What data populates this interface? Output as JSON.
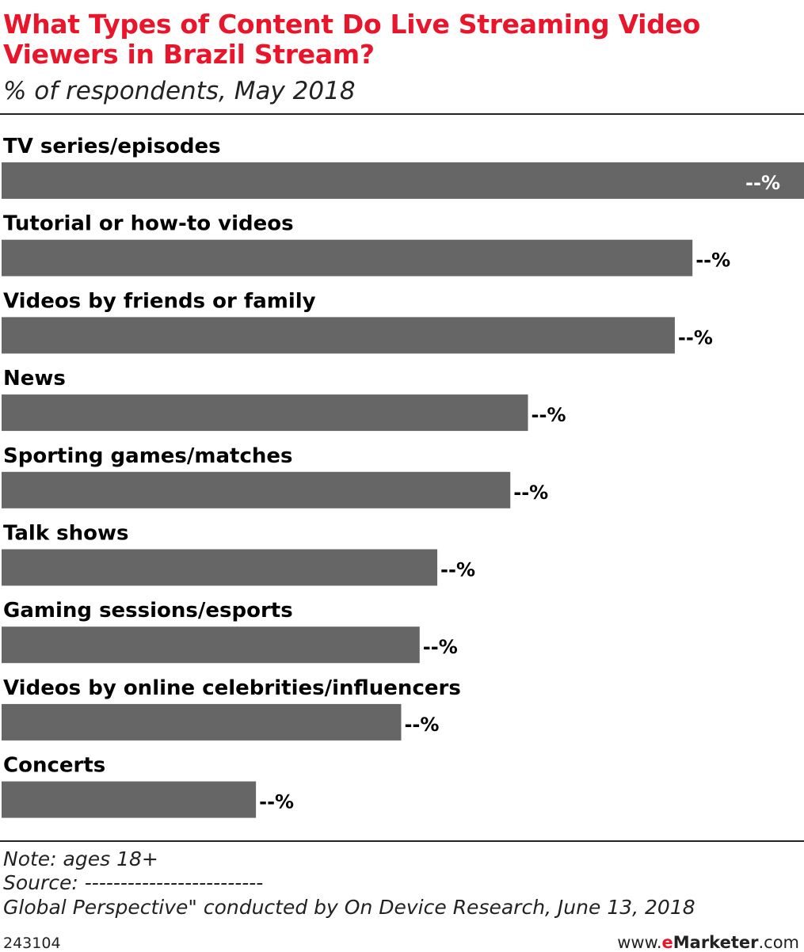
{
  "header": {
    "title": "What Types of Content Do Live Streaming Video Viewers in Brazil Stream?",
    "subtitle": "% of respondents, May 2018"
  },
  "chart_data": {
    "type": "bar",
    "orientation": "horizontal",
    "categories": [
      "TV series/episodes",
      "Tutorial or how-to videos",
      "Videos by friends or family",
      "News",
      "Sporting games/matches",
      "Talk shows",
      "Gaming sessions/esports",
      "Videos by online celebrities/influencers",
      "Concerts"
    ],
    "values": [
      100,
      86.1,
      83.9,
      65.6,
      63.4,
      54.3,
      52.1,
      49.8,
      31.7
    ],
    "value_labels": [
      "--%",
      "--%",
      "--%",
      "--%",
      "--%",
      "--%",
      "--%",
      "--%",
      "--%"
    ],
    "bar_color": "#666666",
    "grid": false,
    "legend": "none"
  },
  "footer": {
    "note": "Note: ages 18+",
    "source": "Source: -------------------------",
    "source_detail": "Global Perspective\" conducted by On Device Research, June 13, 2018",
    "chart_id": "243104",
    "brand_prefix": "www.",
    "brand_e": "e",
    "brand_name": "Marketer",
    "brand_suffix": ".com"
  },
  "colors": {
    "title": "#e8152b",
    "bar": "#666666",
    "inside_label": "#ffffff",
    "outside_label": "#000000"
  }
}
